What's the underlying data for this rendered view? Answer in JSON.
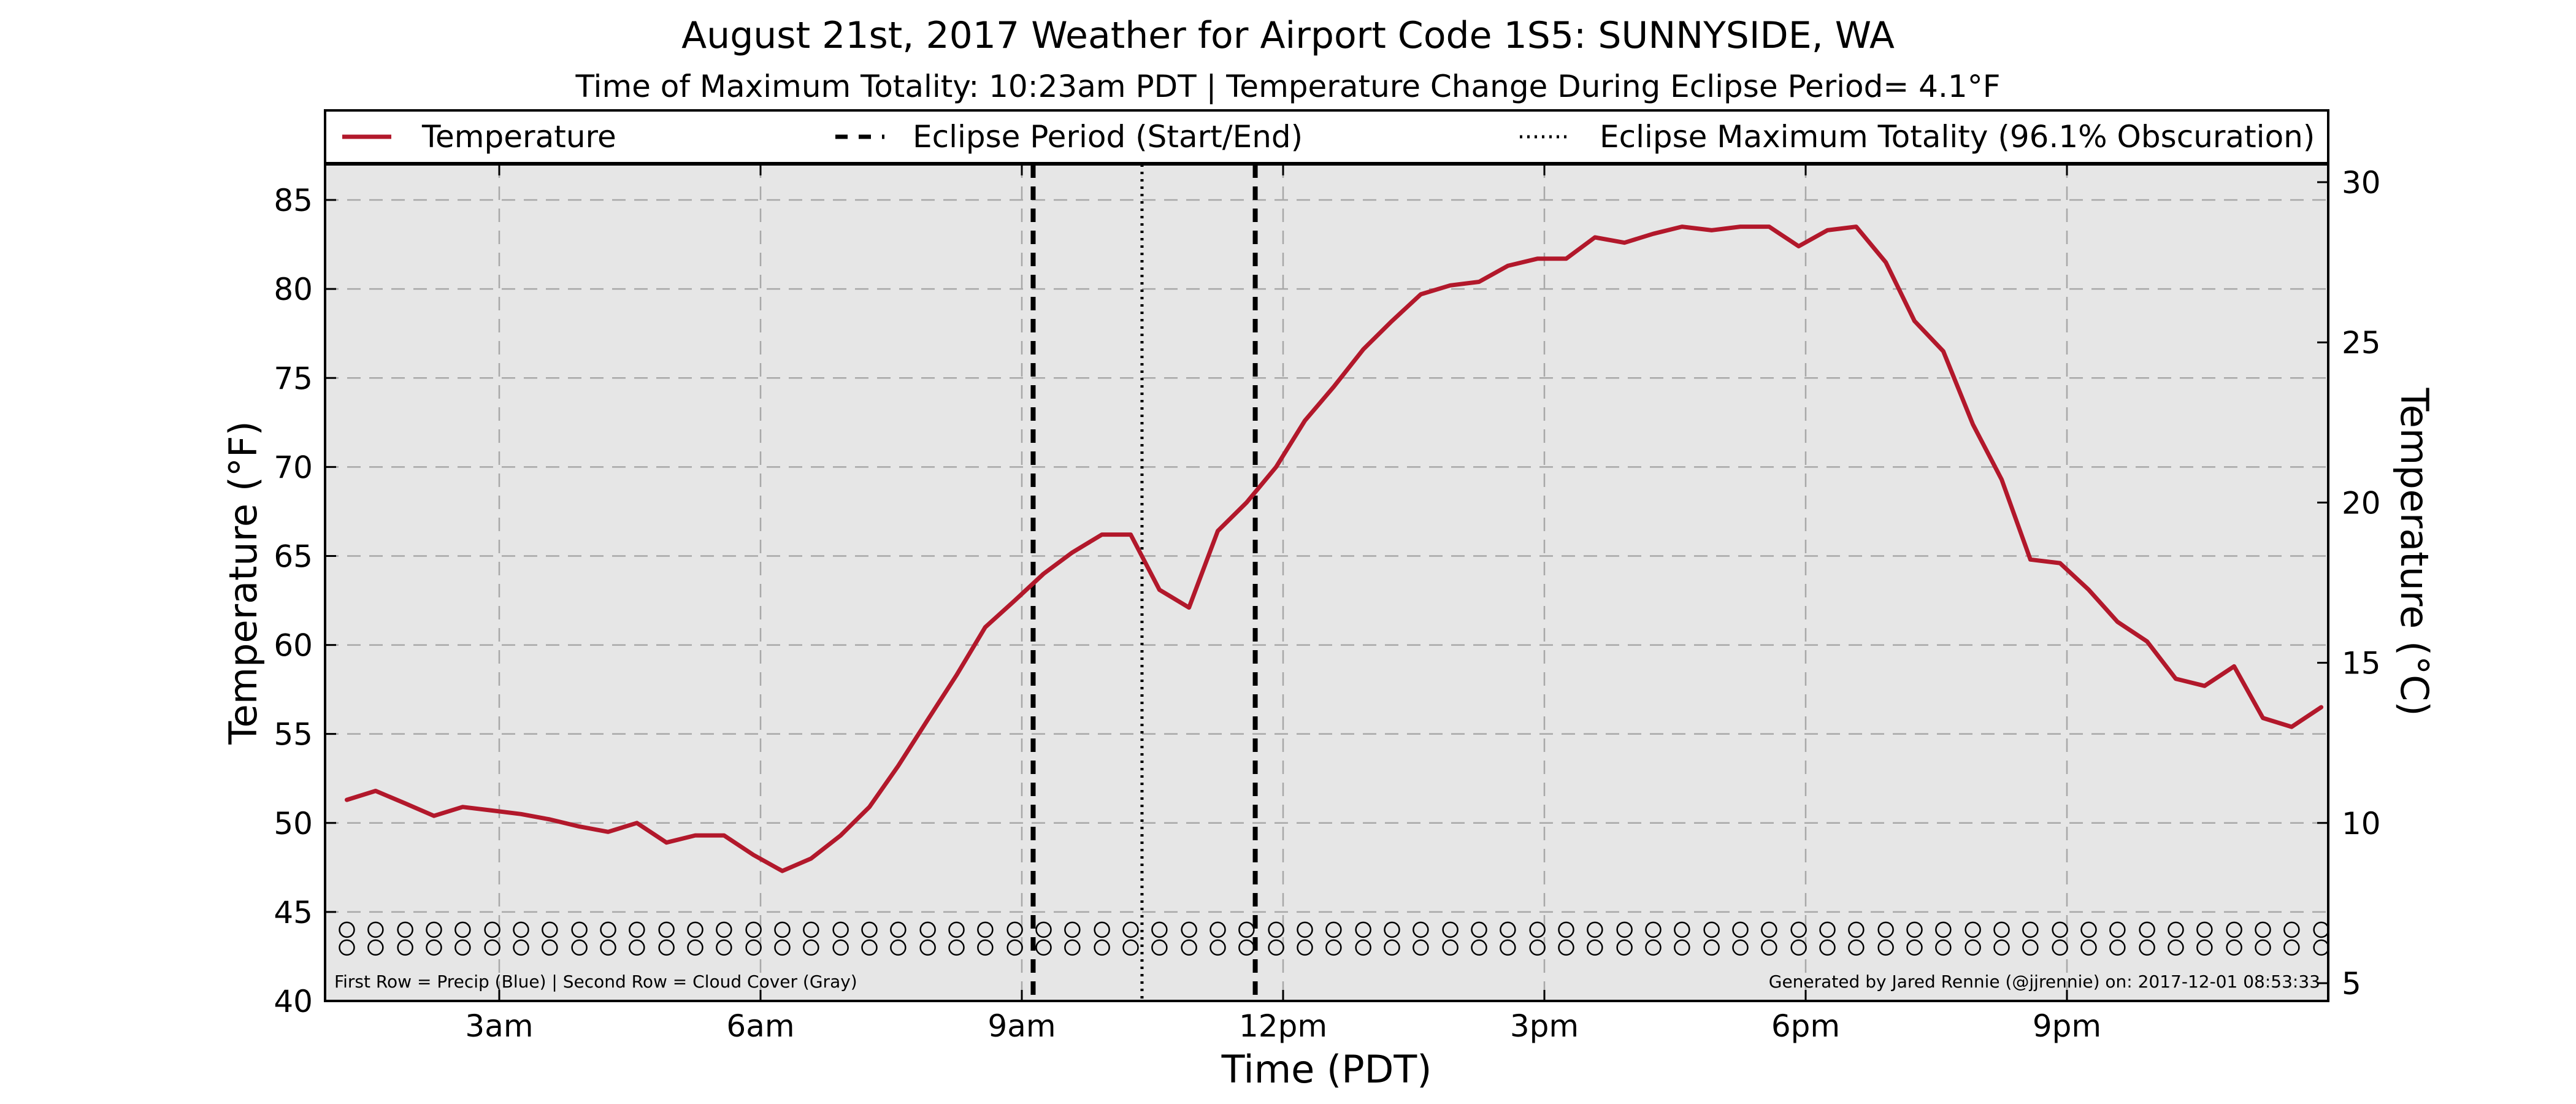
{
  "chart_data": {
    "type": "line",
    "title": "August 21st, 2017 Weather for Airport Code 1S5: SUNNYSIDE, WA",
    "subtitle": "Time of Maximum Totality: 10:23am PDT | Temperature Change During Eclipse Period= 4.1°F",
    "xlabel": "Time (PDT)",
    "ylabel": "Temperature (°F)",
    "ylabel_right": "Temperature (°C)",
    "xlim": [
      1.0,
      24.0
    ],
    "ylim": [
      40,
      87
    ],
    "ylim_right_c": [
      4.44,
      30.56
    ],
    "x_ticks": [
      {
        "value": 3,
        "label": "3am"
      },
      {
        "value": 6,
        "label": "6am"
      },
      {
        "value": 9,
        "label": "9am"
      },
      {
        "value": 12,
        "label": "12pm"
      },
      {
        "value": 15,
        "label": "3pm"
      },
      {
        "value": 18,
        "label": "6pm"
      },
      {
        "value": 21,
        "label": "9pm"
      }
    ],
    "y_ticks": [
      40,
      45,
      50,
      55,
      60,
      65,
      70,
      75,
      80,
      85
    ],
    "y_ticks_right": [
      5,
      10,
      15,
      20,
      25,
      30
    ],
    "grid": true,
    "legend_position": "top",
    "legend": [
      {
        "label": "Temperature",
        "style": "solid"
      },
      {
        "label": "Eclipse Period (Start/End)",
        "style": "dashed"
      },
      {
        "label": "Eclipse Maximum Totality (96.1% Obscuration)",
        "style": "dotted"
      }
    ],
    "series": [
      {
        "name": "Temperature",
        "color": "#b2182b",
        "x": [
          1.25,
          1.58,
          1.92,
          2.25,
          2.58,
          2.92,
          3.25,
          3.58,
          3.92,
          4.25,
          4.58,
          4.92,
          5.25,
          5.58,
          5.92,
          6.25,
          6.58,
          6.92,
          7.25,
          7.58,
          7.92,
          8.25,
          8.58,
          8.92,
          9.25,
          9.58,
          9.92,
          10.25,
          10.58,
          10.92,
          11.25,
          11.58,
          11.92,
          12.25,
          12.58,
          12.92,
          13.25,
          13.58,
          13.92,
          14.25,
          14.58,
          14.92,
          15.25,
          15.58,
          15.92,
          16.25,
          16.58,
          16.92,
          17.25,
          17.58,
          17.92,
          18.25,
          18.58,
          18.92,
          19.25,
          19.58,
          19.92,
          20.25,
          20.58,
          20.92,
          21.25,
          21.58,
          21.92,
          22.25,
          22.58,
          22.92,
          23.25,
          23.58,
          23.92
        ],
        "values": [
          51.3,
          51.8,
          51.1,
          50.4,
          50.9,
          50.7,
          50.5,
          50.2,
          49.8,
          49.5,
          50.0,
          48.9,
          49.3,
          49.3,
          48.2,
          47.3,
          48.0,
          49.3,
          50.9,
          53.2,
          55.8,
          58.3,
          61.0,
          62.5,
          64.0,
          65.2,
          66.2,
          66.2,
          63.1,
          62.1,
          66.4,
          68.0,
          70.0,
          72.6,
          74.5,
          76.6,
          78.2,
          79.7,
          80.2,
          80.4,
          81.3,
          81.7,
          81.7,
          82.9,
          82.6,
          83.1,
          83.5,
          83.3,
          83.5,
          83.5,
          82.4,
          83.3,
          83.5,
          81.5,
          78.2,
          76.5,
          72.4,
          69.3,
          64.8,
          64.6,
          63.1,
          61.3,
          60.2,
          58.1,
          57.7,
          58.8,
          55.9,
          55.4,
          56.5
        ]
      }
    ],
    "eclipse_start": 9.13,
    "eclipse_end": 11.68,
    "eclipse_max": 10.38,
    "marker_rows": {
      "x": [
        1.25,
        1.58,
        1.92,
        2.25,
        2.58,
        2.92,
        3.25,
        3.58,
        3.92,
        4.25,
        4.58,
        4.92,
        5.25,
        5.58,
        5.92,
        6.25,
        6.58,
        6.92,
        7.25,
        7.58,
        7.92,
        8.25,
        8.58,
        8.92,
        9.25,
        9.58,
        9.92,
        10.25,
        10.58,
        10.92,
        11.25,
        11.58,
        11.92,
        12.25,
        12.58,
        12.92,
        13.25,
        13.58,
        13.92,
        14.25,
        14.58,
        14.92,
        15.25,
        15.58,
        15.92,
        16.25,
        16.58,
        16.92,
        17.25,
        17.58,
        17.92,
        18.25,
        18.58,
        18.92,
        19.25,
        19.58,
        19.92,
        20.25,
        20.58,
        20.92,
        21.25,
        21.58,
        21.92,
        22.25,
        22.58,
        22.92,
        23.25,
        23.58,
        23.92
      ],
      "row1_y": 44.0,
      "row2_y": 43.0
    },
    "annotation_left": "First Row = Precip (Blue) | Second Row = Cloud Cover (Gray)",
    "annotation_right": "Generated by Jared Rennie (@jjrennie) on: 2017-12-01 08:53:33"
  }
}
